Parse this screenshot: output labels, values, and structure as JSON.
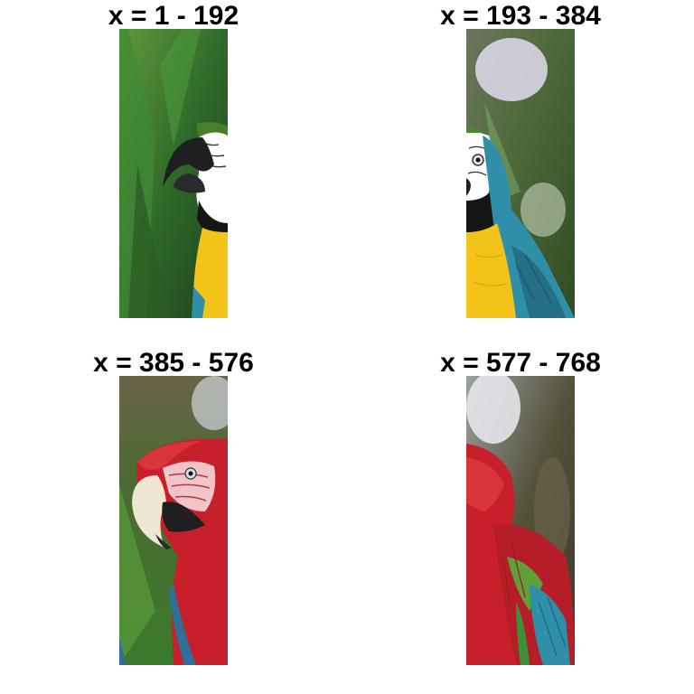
{
  "panels": [
    {
      "title": "x = 1 - 192",
      "subject": "blue-and-yellow macaw head facing left, green foliage background"
    },
    {
      "title": "x = 193 - 384",
      "subject": "blue-and-yellow macaw chest and wing"
    },
    {
      "title": "x = 385 - 576",
      "subject": "red-and-green macaw head facing left"
    },
    {
      "title": "x = 577 - 768",
      "subject": "red-and-green macaw body and wing"
    }
  ],
  "colors": {
    "background": "#ffffff",
    "foliage": "#3f7d2a",
    "macaw_yellow": "#f2c318",
    "macaw_blue": "#2f8fa8",
    "macaw_red": "#c8202a",
    "beak_dark": "#1f1f22",
    "beak_light": "#efe6d3"
  }
}
